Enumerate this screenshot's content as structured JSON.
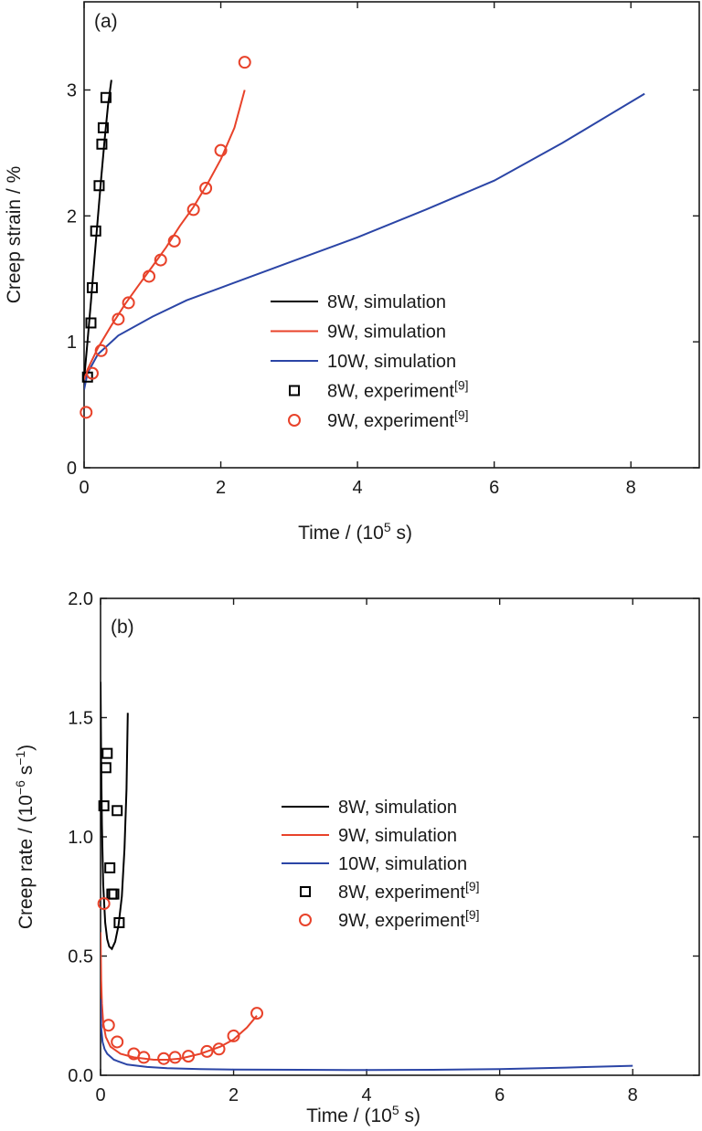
{
  "colors": {
    "8W": "#000000",
    "9W": "#e8422a",
    "10W": "#2b45a6",
    "axis": "#1a1a1a"
  },
  "chart_data": [
    {
      "type": "line",
      "panel_label": "(a)",
      "xlabel_parts": [
        "Time / (10",
        "5",
        " s)"
      ],
      "ylabel": "Creep strain / %",
      "xlim": [
        0,
        9
      ],
      "ylim": [
        0,
        3.7
      ],
      "xticks": [
        0,
        2,
        4,
        6,
        8
      ],
      "yticks": [
        0,
        1,
        2,
        3
      ],
      "legend_position": "lower-right",
      "legend": [
        {
          "text": "8W, simulation",
          "sup": "",
          "kind": "line",
          "color_key": "8W"
        },
        {
          "text": "9W, simulation",
          "sup": "",
          "kind": "line",
          "color_key": "9W"
        },
        {
          "text": "10W, simulation",
          "sup": "",
          "kind": "line",
          "color_key": "10W"
        },
        {
          "text": "8W, experiment",
          "sup": "[9]",
          "kind": "square",
          "color_key": "8W"
        },
        {
          "text": "9W, experiment",
          "sup": "[9]",
          "kind": "circle",
          "color_key": "9W"
        }
      ],
      "series": [
        {
          "kind": "line",
          "color_key": "8W",
          "x": [
            0.0,
            0.05,
            0.1,
            0.15,
            0.2,
            0.25,
            0.3,
            0.35,
            0.4
          ],
          "y": [
            0.7,
            1.0,
            1.32,
            1.65,
            1.98,
            2.3,
            2.6,
            2.88,
            3.08
          ]
        },
        {
          "kind": "line",
          "color_key": "9W",
          "x": [
            0.0,
            0.05,
            0.2,
            0.4,
            0.6,
            0.8,
            1.0,
            1.2,
            1.4,
            1.6,
            1.8,
            2.0,
            2.2,
            2.35
          ],
          "y": [
            0.7,
            0.78,
            0.95,
            1.13,
            1.3,
            1.45,
            1.6,
            1.75,
            1.92,
            2.07,
            2.25,
            2.45,
            2.7,
            3.0
          ]
        },
        {
          "kind": "line",
          "color_key": "10W",
          "x": [
            0.0,
            0.05,
            0.2,
            0.5,
            1.0,
            1.5,
            2.0,
            3.0,
            4.0,
            5.0,
            6.0,
            7.0,
            8.2
          ],
          "y": [
            0.62,
            0.75,
            0.9,
            1.05,
            1.2,
            1.33,
            1.43,
            1.63,
            1.83,
            2.05,
            2.28,
            2.58,
            2.97
          ]
        },
        {
          "kind": "square",
          "color_key": "8W",
          "x": [
            0.05,
            0.1,
            0.12,
            0.17,
            0.22,
            0.26,
            0.28,
            0.32
          ],
          "y": [
            0.72,
            1.15,
            1.43,
            1.88,
            2.24,
            2.57,
            2.7,
            2.94
          ]
        },
        {
          "kind": "circle",
          "color_key": "9W",
          "x": [
            0.03,
            0.12,
            0.25,
            0.5,
            0.65,
            0.95,
            1.12,
            1.32,
            1.6,
            1.78,
            2.0,
            2.35
          ],
          "y": [
            0.44,
            0.75,
            0.93,
            1.18,
            1.31,
            1.52,
            1.65,
            1.8,
            2.05,
            2.22,
            2.52,
            3.22
          ]
        }
      ]
    },
    {
      "type": "line",
      "panel_label": "(b)",
      "xlabel_parts": [
        "Time / (10",
        "5",
        " s)"
      ],
      "ylabel_parts": [
        "Creep rate / (10",
        "−6",
        " s",
        "−1",
        ")"
      ],
      "xlim": [
        0,
        9
      ],
      "ylim": [
        0,
        2.0
      ],
      "xticks": [
        0,
        2,
        4,
        6,
        8
      ],
      "yticks": [
        0.0,
        0.5,
        1.0,
        1.5,
        2.0
      ],
      "ytick_labels": [
        "0.0",
        "0.5",
        "1.0",
        "1.5",
        "2.0"
      ],
      "legend_position": "center-right",
      "legend": [
        {
          "text": "8W, simulation",
          "sup": "",
          "kind": "line",
          "color_key": "8W"
        },
        {
          "text": "9W, simulation",
          "sup": "",
          "kind": "line",
          "color_key": "9W"
        },
        {
          "text": "10W, simulation",
          "sup": "",
          "kind": "line",
          "color_key": "10W"
        },
        {
          "text": "8W, experiment",
          "sup": "[9]",
          "kind": "square",
          "color_key": "8W"
        },
        {
          "text": "9W, experiment",
          "sup": "[9]",
          "kind": "circle",
          "color_key": "9W"
        }
      ],
      "series": [
        {
          "kind": "line",
          "color_key": "8W",
          "x": [
            0.0,
            0.01,
            0.02,
            0.04,
            0.07,
            0.1,
            0.13,
            0.17,
            0.22,
            0.27,
            0.32,
            0.36,
            0.39,
            0.41
          ],
          "y": [
            1.65,
            1.3,
            1.05,
            0.8,
            0.64,
            0.57,
            0.54,
            0.53,
            0.56,
            0.63,
            0.75,
            0.95,
            1.2,
            1.52
          ]
        },
        {
          "kind": "line",
          "color_key": "9W",
          "x": [
            0.0,
            0.01,
            0.02,
            0.04,
            0.08,
            0.15,
            0.3,
            0.5,
            0.8,
            1.0,
            1.2,
            1.5,
            1.8,
            2.0,
            2.2,
            2.35
          ],
          "y": [
            0.6,
            0.4,
            0.3,
            0.22,
            0.16,
            0.12,
            0.09,
            0.075,
            0.065,
            0.065,
            0.07,
            0.09,
            0.12,
            0.15,
            0.2,
            0.25
          ]
        },
        {
          "kind": "line",
          "color_key": "10W",
          "x": [
            0.0,
            0.01,
            0.03,
            0.06,
            0.1,
            0.2,
            0.4,
            0.7,
            1.0,
            1.5,
            2.0,
            3.0,
            4.0,
            5.0,
            6.0,
            7.0,
            8.0
          ],
          "y": [
            0.32,
            0.2,
            0.14,
            0.11,
            0.09,
            0.065,
            0.045,
            0.035,
            0.03,
            0.026,
            0.024,
            0.023,
            0.022,
            0.023,
            0.026,
            0.032,
            0.04
          ]
        },
        {
          "kind": "square",
          "color_key": "8W",
          "x": [
            0.05,
            0.08,
            0.1,
            0.14,
            0.17,
            0.2,
            0.25,
            0.28
          ],
          "y": [
            1.13,
            1.29,
            1.35,
            0.87,
            0.76,
            0.76,
            1.11,
            0.64
          ]
        },
        {
          "kind": "circle",
          "color_key": "9W",
          "x": [
            0.05,
            0.12,
            0.25,
            0.5,
            0.65,
            0.95,
            1.12,
            1.32,
            1.6,
            1.78,
            2.0,
            2.35
          ],
          "y": [
            0.72,
            0.21,
            0.14,
            0.09,
            0.075,
            0.07,
            0.075,
            0.08,
            0.1,
            0.11,
            0.165,
            0.26
          ]
        }
      ]
    }
  ]
}
